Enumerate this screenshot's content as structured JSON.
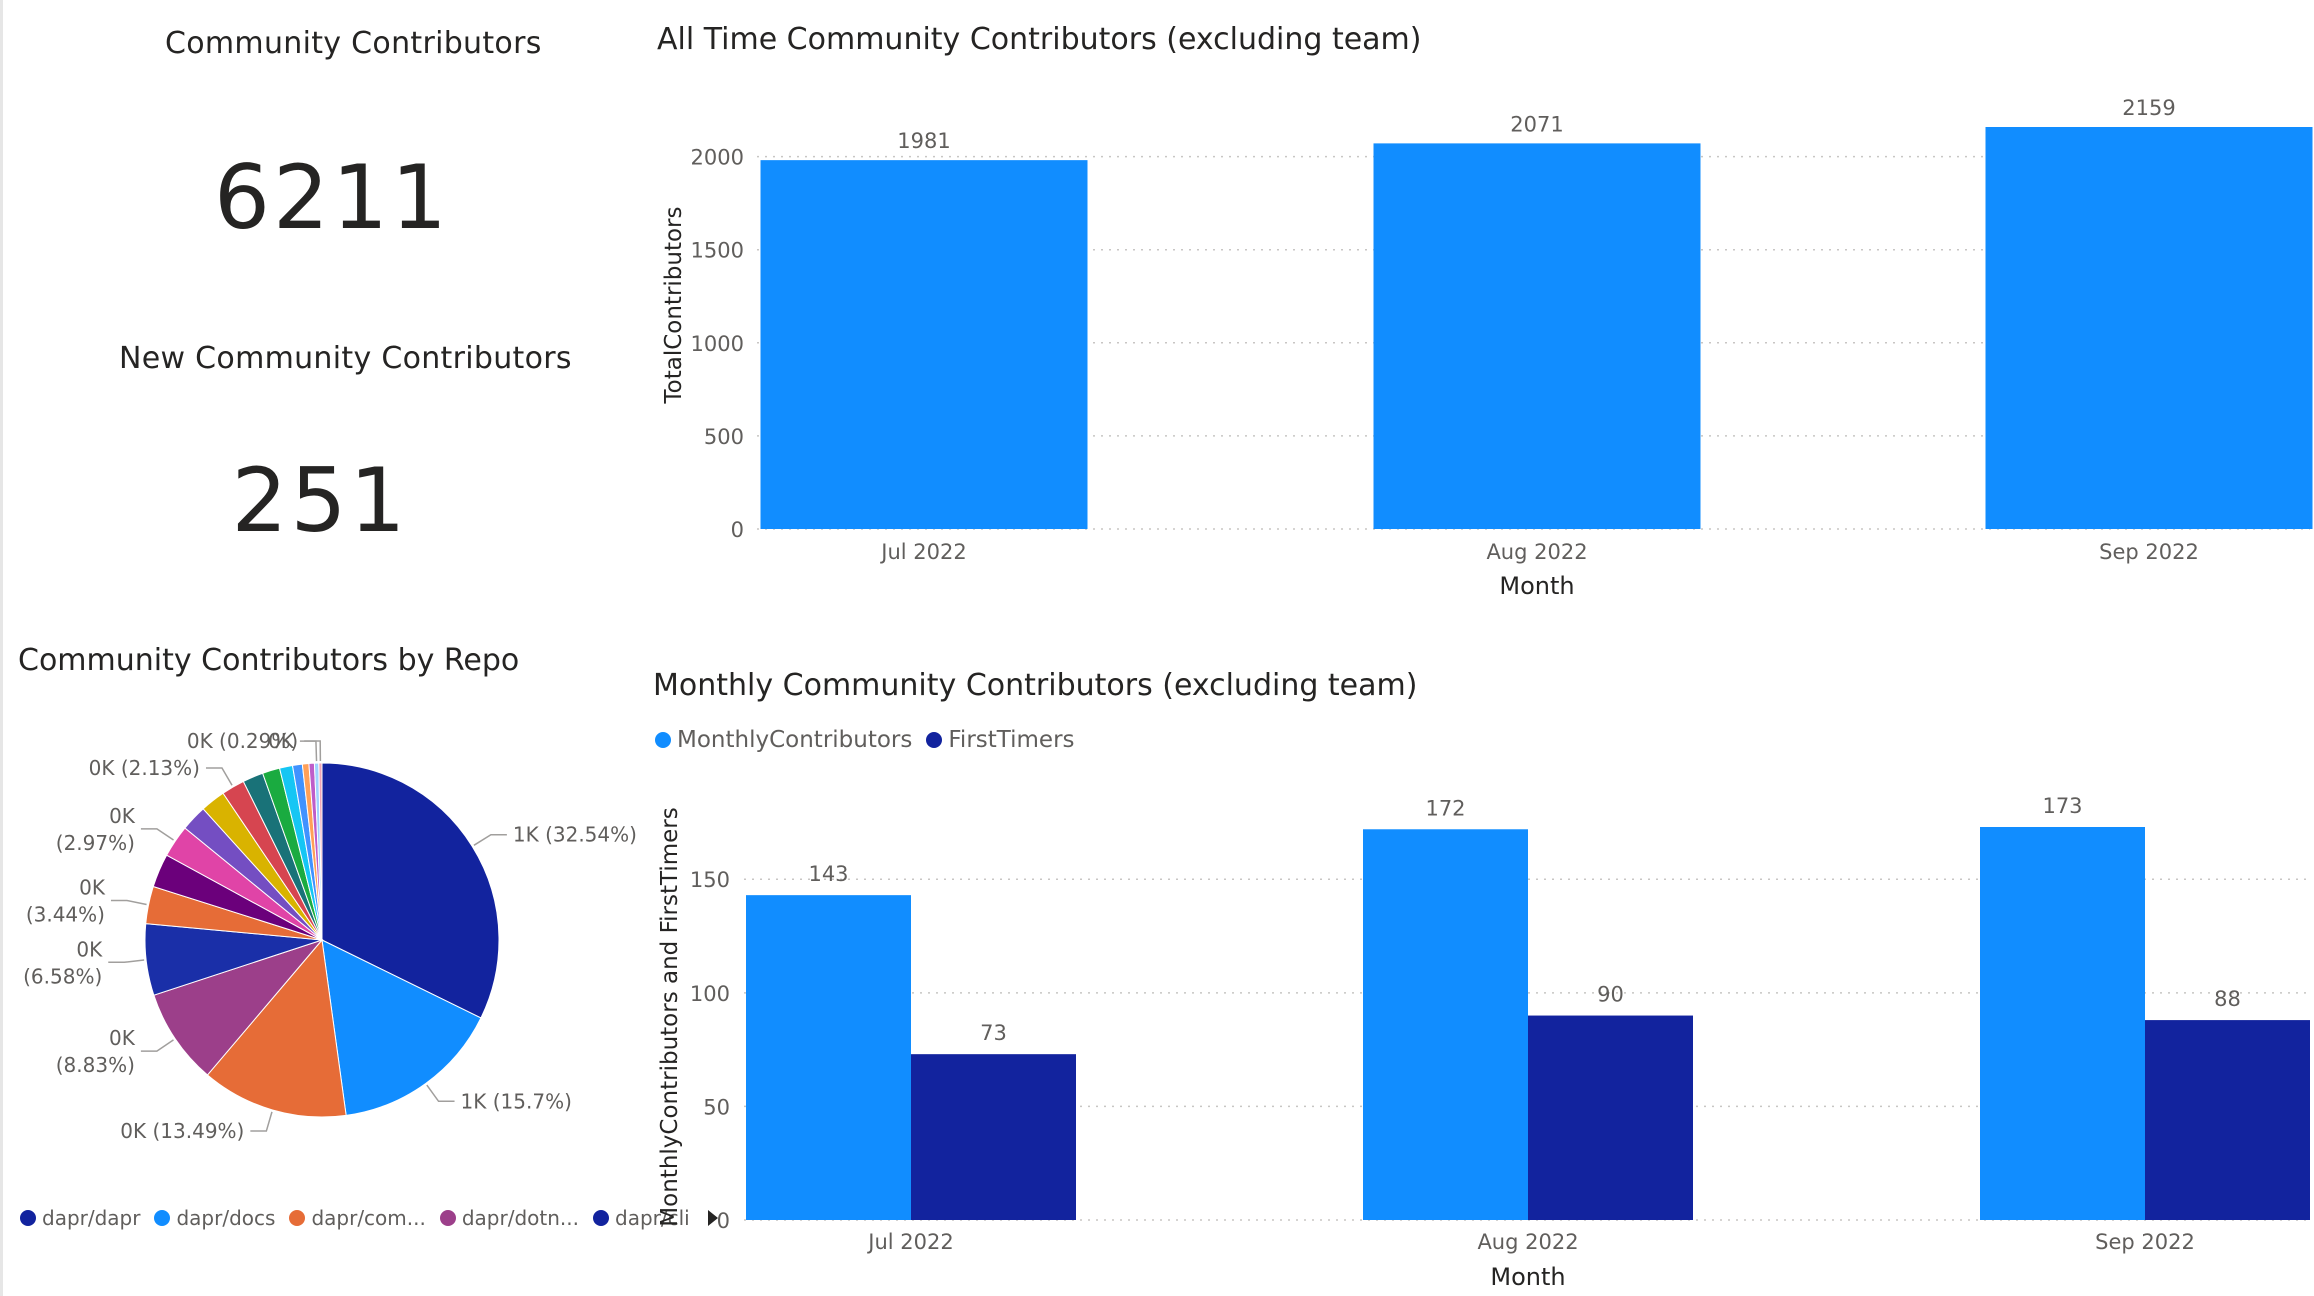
{
  "cards": {
    "community": {
      "title": "Community Contributors",
      "value": "6211"
    },
    "new_community": {
      "title": "New Community Contributors",
      "value": "251"
    }
  },
  "colors": {
    "light_blue": "#118DFF",
    "dark_blue": "#12239E",
    "text": "#252423",
    "axis_text": "#605E5C",
    "grid": "#C8C6C4"
  },
  "chart_data": [
    {
      "type": "bar",
      "title": "All Time Community Contributors (excluding team)",
      "xlabel": "Month",
      "ylabel": "TotalContributors",
      "categories": [
        "Jul 2022",
        "Aug 2022",
        "Sep 2022"
      ],
      "values": [
        1981,
        2071,
        2159
      ],
      "ylim": [
        0,
        2159
      ],
      "yticks": [
        0,
        500,
        1000,
        1500,
        2000
      ],
      "grid": true,
      "color": "#118DFF"
    },
    {
      "type": "pie",
      "title": "Community Contributors by Repo",
      "legend": [
        "dapr/dapr",
        "dapr/docs",
        "dapr/com...",
        "dapr/dotn...",
        "dapr/cli"
      ],
      "legend_placement": "bottom",
      "slices": [
        {
          "name": "dapr/dapr",
          "label": "1K (32.54%)",
          "percent": 32.54,
          "color": "#12239E"
        },
        {
          "name": "dapr/docs",
          "label": "1K (15.7%)",
          "percent": 15.7,
          "color": "#118DFF"
        },
        {
          "name": "dapr/com...",
          "label": "0K (13.49%)",
          "percent": 13.49,
          "color": "#E66C37"
        },
        {
          "name": "dapr/dotn...",
          "label": "0K (8.83%)",
          "percent": 8.83,
          "color": "#9C3F8A"
        },
        {
          "name": "dapr/cli",
          "label": "0K (6.58%)",
          "percent": 6.58,
          "color": "#1A2FA8"
        },
        {
          "label": "0K (3.44%)",
          "percent": 3.44,
          "color": "#E66C37"
        },
        {
          "percent": 3.1,
          "color": "#6B007B"
        },
        {
          "label": "0K (2.97%)",
          "percent": 2.97,
          "color": "#E044A7"
        },
        {
          "percent": 2.4,
          "color": "#744EC2"
        },
        {
          "percent": 2.3,
          "color": "#D9B300"
        },
        {
          "label": "0K (2.13%)",
          "percent": 2.13,
          "color": "#D64550"
        },
        {
          "percent": 1.9,
          "color": "#197278"
        },
        {
          "percent": 1.6,
          "color": "#1AAB40"
        },
        {
          "percent": 1.2,
          "color": "#15C6F4"
        },
        {
          "percent": 0.9,
          "color": "#4092FF"
        },
        {
          "percent": 0.6,
          "color": "#FFA058"
        },
        {
          "percent": 0.5,
          "color": "#BE5DC9"
        },
        {
          "label": "0K",
          "percent": 0.4,
          "color": "#A0D1FF"
        },
        {
          "label": "0K (0.29%)",
          "percent": 0.29,
          "color": "#F0A4B5"
        }
      ]
    },
    {
      "type": "bar",
      "title": "Monthly Community Contributors (excluding team)",
      "xlabel": "Month",
      "ylabel": "MonthlyContributors and FirstTimers",
      "categories": [
        "Jul 2022",
        "Aug 2022",
        "Sep 2022"
      ],
      "series": [
        {
          "name": "MonthlyContributors",
          "values": [
            143,
            172,
            173
          ],
          "color": "#118DFF"
        },
        {
          "name": "FirstTimers",
          "values": [
            73,
            90,
            88
          ],
          "color": "#12239E"
        }
      ],
      "ylim": [
        0,
        173
      ],
      "yticks": [
        0,
        50,
        100,
        150
      ],
      "grid": true,
      "legend_placement": "top-left"
    }
  ]
}
